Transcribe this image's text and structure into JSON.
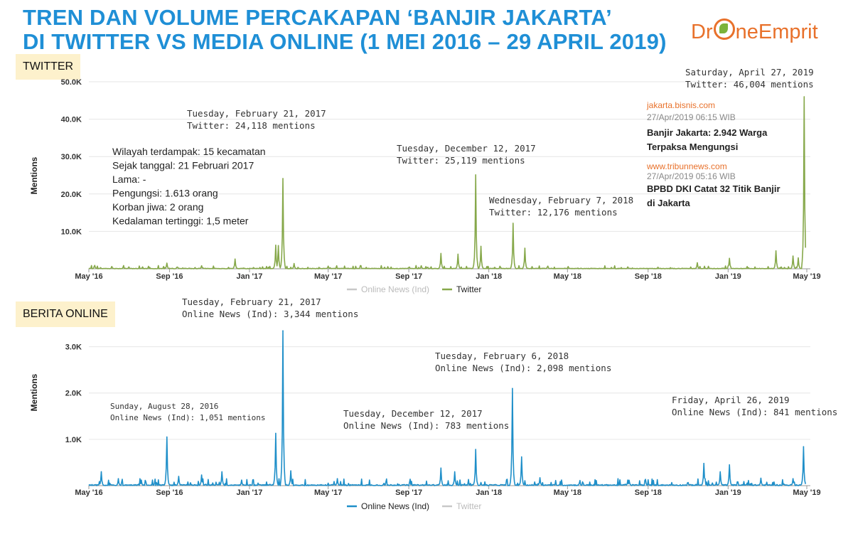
{
  "title": {
    "line1": "TREN DAN VOLUME PERCAKAPAN ‘BANJIR JAKARTA’",
    "line2": "DI TWITTER VS MEDIA ONLINE (1 MEI 2016 – 29 APRIL 2019)"
  },
  "logo": {
    "part1": "Dr",
    "part2": "neEmprit"
  },
  "colors": {
    "twitter": "#86a84a",
    "online": "#1f8fc9",
    "title": "#1f8fd6",
    "inactive_legend": "#c8c8c8"
  },
  "chart_data": [
    {
      "type": "line",
      "panel_label": "TWITTER",
      "ylabel": "Mentions",
      "ylim": [
        0,
        50000
      ],
      "yticks": [
        10000,
        20000,
        30000,
        40000,
        50000
      ],
      "ytick_labels": [
        "10.0K",
        "20.0K",
        "30.0K",
        "40.0K",
        "50.0K"
      ],
      "xlim": [
        "2016-05-01",
        "2019-04-29"
      ],
      "xtick_labels": [
        "May '16",
        "Sep '16",
        "Jan '17",
        "May '17",
        "Sep '17",
        "Jan '18",
        "May '18",
        "Sep '18",
        "Jan '19",
        "May '19"
      ],
      "legend": [
        {
          "name": "Online News (Ind)",
          "active": false
        },
        {
          "name": "Twitter",
          "active": true
        }
      ],
      "series": [
        {
          "name": "Twitter",
          "points": [
            [
              "2016-05-10",
              900
            ],
            [
              "2016-06-05",
              600
            ],
            [
              "2016-07-01",
              500
            ],
            [
              "2016-08-28",
              1500
            ],
            [
              "2016-10-20",
              800
            ],
            [
              "2016-12-10",
              2600
            ],
            [
              "2017-02-10",
              6300
            ],
            [
              "2017-02-14",
              6200
            ],
            [
              "2017-02-21",
              24118
            ],
            [
              "2017-03-10",
              1400
            ],
            [
              "2017-05-01",
              700
            ],
            [
              "2017-09-20",
              800
            ],
            [
              "2017-10-20",
              4100
            ],
            [
              "2017-11-15",
              3900
            ],
            [
              "2017-12-12",
              25119
            ],
            [
              "2017-12-20",
              6000
            ],
            [
              "2018-02-07",
              12176
            ],
            [
              "2018-02-25",
              5500
            ],
            [
              "2018-04-01",
              700
            ],
            [
              "2018-08-01",
              500
            ],
            [
              "2018-11-15",
              1600
            ],
            [
              "2019-01-03",
              2800
            ],
            [
              "2019-03-15",
              4800
            ],
            [
              "2019-04-10",
              3400
            ],
            [
              "2019-04-18",
              2900
            ],
            [
              "2019-04-27",
              46004
            ]
          ]
        }
      ],
      "annotations": [
        {
          "date": "Tuesday, February 21, 2017",
          "text": "Twitter: 24,118 mentions"
        },
        {
          "date": "Tuesday, December 12, 2017",
          "text": "Twitter: 25,119 mentions"
        },
        {
          "date": "Wednesday, February 7, 2018",
          "text": "Twitter: 12,176 mentions"
        },
        {
          "date": "Saturday, April 27, 2019",
          "text": "Twitter: 46,004 mentions"
        }
      ],
      "info_box": [
        "Wilayah terdampak: 15 kecamatan",
        "Sejak tanggal: 21 Februari 2017",
        "Lama: -",
        "Pengungsi: 1.613 orang",
        "Korban jiwa: 2 orang",
        "Kedalaman tertinggi: 1,5 meter"
      ],
      "news": [
        {
          "source": "jakarta.bisnis.com",
          "time": "27/Apr/2019 06:15 WIB",
          "headline_lines": [
            "Banjir Jakarta: 2.942 Warga",
            "Terpaksa Mengungsi"
          ]
        },
        {
          "source": "www.tribunnews.com",
          "time": "27/Apr/2019 05:16 WIB",
          "headline_lines": [
            "BPBD DKI Catat 32 Titik Banjir",
            "di Jakarta"
          ]
        }
      ]
    },
    {
      "type": "line",
      "panel_label": "BERITA ONLINE",
      "ylabel": "Mentions",
      "ylim": [
        0,
        3500
      ],
      "yticks": [
        1000,
        2000,
        3000
      ],
      "ytick_labels": [
        "1.0K",
        "2.0K",
        "3.0K"
      ],
      "xlim": [
        "2016-05-01",
        "2019-04-29"
      ],
      "xtick_labels": [
        "May '16",
        "Sep '16",
        "Jan '17",
        "May '17",
        "Sep '17",
        "Jan '18",
        "May '18",
        "Sep '18",
        "Jan '19",
        "May '19"
      ],
      "legend": [
        {
          "name": "Online News (Ind)",
          "active": true
        },
        {
          "name": "Twitter",
          "active": false
        }
      ],
      "series": [
        {
          "name": "Online News (Ind)",
          "points": [
            [
              "2016-05-20",
              300
            ],
            [
              "2016-06-15",
              150
            ],
            [
              "2016-07-20",
              120
            ],
            [
              "2016-08-28",
              1051
            ],
            [
              "2016-09-15",
              200
            ],
            [
              "2016-10-20",
              230
            ],
            [
              "2016-11-20",
              300
            ],
            [
              "2016-12-20",
              120
            ],
            [
              "2017-02-10",
              1130
            ],
            [
              "2017-02-21",
              3344
            ],
            [
              "2017-03-05",
              320
            ],
            [
              "2017-05-15",
              150
            ],
            [
              "2017-10-20",
              380
            ],
            [
              "2017-11-10",
              300
            ],
            [
              "2017-12-12",
              783
            ],
            [
              "2018-02-06",
              2098
            ],
            [
              "2018-02-20",
              620
            ],
            [
              "2018-03-20",
              170
            ],
            [
              "2018-08-01",
              120
            ],
            [
              "2018-11-25",
              480
            ],
            [
              "2018-12-20",
              300
            ],
            [
              "2019-01-03",
              450
            ],
            [
              "2019-02-20",
              160
            ],
            [
              "2019-04-10",
              150
            ],
            [
              "2019-04-26",
              841
            ]
          ]
        }
      ],
      "annotations": [
        {
          "date": "Sunday, August 28, 2016",
          "text": "Online News (Ind): 1,051 mentions"
        },
        {
          "date": "Tuesday, February 21, 2017",
          "text": "Online News (Ind): 3,344 mentions"
        },
        {
          "date": "Tuesday, December 12, 2017",
          "text": "Online News (Ind): 783 mentions"
        },
        {
          "date": "Tuesday, February 6, 2018",
          "text": "Online News (Ind): 2,098 mentions"
        },
        {
          "date": "Friday, April 26, 2019",
          "text": "Online News (Ind): 841 mentions"
        }
      ]
    }
  ]
}
